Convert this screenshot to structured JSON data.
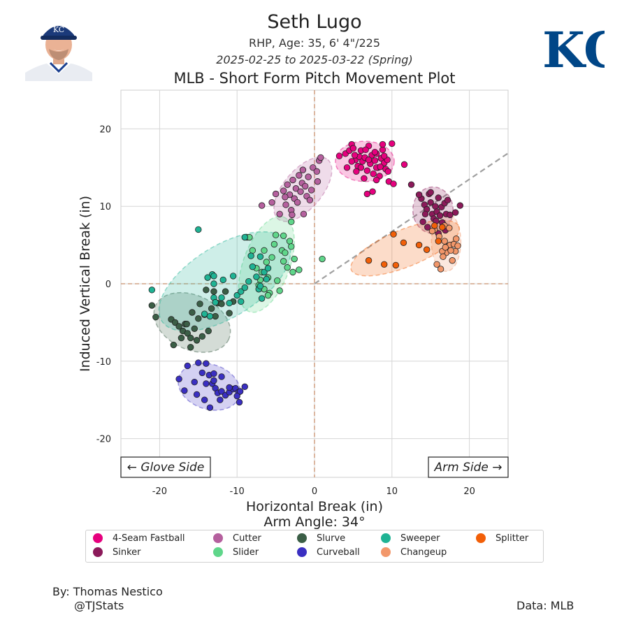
{
  "header": {
    "player_name": "Seth Lugo",
    "player_info": "RHP, Age: 35, 6' 4\"/225",
    "date_range": "2025-02-25 to 2025-03-22 (Spring)",
    "headshot_icon": "player-headshot-icon",
    "team_logo_text": "KC"
  },
  "footer": {
    "credit_name": "By: Thomas Nestico",
    "credit_handle": "@TJStats",
    "data_source": "Data: MLB"
  },
  "colors": {
    "4-Seam Fastball": "#e6007e",
    "Sinker": "#8b1a5a",
    "Cutter": "#b5609e",
    "Slider": "#5fd68a",
    "Slurve": "#3b5e46",
    "Curveball": "#3a2fc2",
    "Sweeper": "#1fb394",
    "Changeup": "#f2976a",
    "Splitter": "#f25f08",
    "team_blue": "#004687"
  },
  "chart_data": {
    "type": "scatter",
    "title": "MLB - Short Form Pitch Movement Plot",
    "xlabel": "Horizontal Break (in)",
    "xlabel2": "Arm Angle: 34°",
    "ylabel": "Induced Vertical Break (in)",
    "xlim": [
      -25,
      25
    ],
    "ylim": [
      -25,
      25
    ],
    "xticks": [
      -20,
      -10,
      0,
      10,
      20
    ],
    "yticks": [
      -20,
      -10,
      0,
      10,
      20
    ],
    "grid": true,
    "arm_angle_deg": 34,
    "annotations": {
      "left": "← Glove Side",
      "right": "Arm Side →"
    },
    "legend_position": "bottom",
    "legend": [
      "4-Seam Fastball",
      "Sinker",
      "Cutter",
      "Slider",
      "Slurve",
      "Curveball",
      "Sweeper",
      "Changeup",
      "Splitter"
    ],
    "series": [
      {
        "name": "4-Seam Fastball",
        "ellipse": {
          "cx": 6.5,
          "cy": 15.8,
          "rx": 3.8,
          "ry": 2.6,
          "angle": 0
        },
        "points": [
          [
            3.2,
            16.5
          ],
          [
            4.0,
            16.8
          ],
          [
            4.5,
            17.2
          ],
          [
            4.8,
            18.0
          ],
          [
            5.0,
            17.5
          ],
          [
            5.3,
            16.0
          ],
          [
            5.6,
            15.2
          ],
          [
            5.8,
            16.4
          ],
          [
            6.0,
            17.2
          ],
          [
            6.2,
            15.8
          ],
          [
            6.5,
            16.3
          ],
          [
            6.8,
            14.6
          ],
          [
            7.0,
            17.8
          ],
          [
            7.2,
            15.5
          ],
          [
            7.4,
            16.6
          ],
          [
            7.6,
            14.2
          ],
          [
            7.8,
            15.9
          ],
          [
            8.0,
            16.8
          ],
          [
            8.2,
            15.0
          ],
          [
            8.4,
            13.9
          ],
          [
            8.6,
            16.2
          ],
          [
            8.8,
            17.3
          ],
          [
            9.0,
            15.6
          ],
          [
            9.2,
            14.8
          ],
          [
            9.4,
            16.0
          ],
          [
            9.6,
            13.2
          ],
          [
            10.0,
            18.1
          ],
          [
            4.2,
            15.0
          ],
          [
            4.8,
            15.8
          ],
          [
            5.4,
            14.5
          ],
          [
            6.4,
            13.6
          ],
          [
            6.8,
            11.6
          ],
          [
            7.5,
            11.9
          ],
          [
            8.0,
            13.4
          ],
          [
            8.8,
            18.0
          ],
          [
            10.2,
            12.9
          ],
          [
            11.6,
            15.4
          ],
          [
            6.0,
            15.0
          ],
          [
            7.0,
            16.0
          ],
          [
            8.0,
            15.0
          ],
          [
            9.0,
            16.5
          ],
          [
            5.2,
            16.6
          ],
          [
            6.6,
            17.3
          ],
          [
            7.8,
            17.0
          ],
          [
            8.5,
            15.1
          ],
          [
            9.5,
            14.5
          ]
        ]
      },
      {
        "name": "Sinker",
        "ellipse": {
          "cx": 15.3,
          "cy": 9.5,
          "rx": 2.6,
          "ry": 3.0,
          "angle": 0
        },
        "points": [
          [
            13.8,
            11.0
          ],
          [
            14.2,
            10.2
          ],
          [
            14.5,
            9.6
          ],
          [
            14.8,
            11.6
          ],
          [
            15.0,
            10.5
          ],
          [
            15.2,
            9.0
          ],
          [
            15.4,
            8.4
          ],
          [
            15.6,
            10.0
          ],
          [
            15.8,
            9.3
          ],
          [
            16.0,
            11.1
          ],
          [
            16.2,
            8.8
          ],
          [
            16.4,
            9.9
          ],
          [
            16.6,
            7.7
          ],
          [
            16.8,
            10.4
          ],
          [
            17.0,
            9.0
          ],
          [
            14.0,
            8.0
          ],
          [
            14.6,
            7.3
          ],
          [
            15.5,
            7.0
          ],
          [
            16.0,
            6.5
          ],
          [
            16.5,
            7.9
          ],
          [
            17.5,
            8.9
          ],
          [
            18.2,
            9.2
          ],
          [
            18.8,
            10.1
          ],
          [
            12.5,
            12.8
          ],
          [
            13.5,
            11.5
          ],
          [
            15.0,
            11.8
          ],
          [
            14.3,
            9.0
          ],
          [
            15.7,
            8.1
          ],
          [
            17.2,
            10.8
          ],
          [
            16.9,
            6.9
          ]
        ]
      },
      {
        "name": "Cutter",
        "ellipse": {
          "cx": -1.5,
          "cy": 12.2,
          "rx": 5.0,
          "ry": 2.5,
          "angle": 50
        },
        "points": [
          [
            -5.5,
            10.5
          ],
          [
            -5.0,
            11.6
          ],
          [
            -4.5,
            9.0
          ],
          [
            -4.0,
            12.0
          ],
          [
            -3.7,
            10.2
          ],
          [
            -3.5,
            12.8
          ],
          [
            -3.2,
            11.5
          ],
          [
            -3.0,
            9.5
          ],
          [
            -2.8,
            13.4
          ],
          [
            -2.6,
            11.0
          ],
          [
            -2.4,
            12.3
          ],
          [
            -2.2,
            10.5
          ],
          [
            -2.0,
            14.0
          ],
          [
            -1.8,
            11.9
          ],
          [
            -1.6,
            13.0
          ],
          [
            -1.4,
            9.0
          ],
          [
            -1.2,
            12.6
          ],
          [
            -1.0,
            11.3
          ],
          [
            -0.8,
            13.8
          ],
          [
            -0.6,
            10.8
          ],
          [
            -0.4,
            12.1
          ],
          [
            -0.2,
            15.0
          ],
          [
            0.3,
            14.5
          ],
          [
            0.6,
            15.9
          ],
          [
            0.8,
            16.3
          ],
          [
            -6.8,
            10.1
          ],
          [
            -3.8,
            11.2
          ],
          [
            -2.9,
            8.9
          ],
          [
            -1.5,
            14.7
          ],
          [
            0.4,
            13.2
          ]
        ]
      },
      {
        "name": "Slider",
        "ellipse": {
          "cx": -6.2,
          "cy": 2.5,
          "rx": 6.5,
          "ry": 3.0,
          "angle": 70
        },
        "points": [
          [
            -8.7,
            6.0
          ],
          [
            -8.4,
            6.0
          ],
          [
            -8.0,
            4.3
          ],
          [
            -7.5,
            2.0
          ],
          [
            -7.0,
            0.5
          ],
          [
            -6.8,
            1.5
          ],
          [
            -6.5,
            -0.7
          ],
          [
            -6.2,
            2.8
          ],
          [
            -6.0,
            0.8
          ],
          [
            -5.8,
            -1.2
          ],
          [
            -5.5,
            3.4
          ],
          [
            -5.2,
            5.1
          ],
          [
            -5.0,
            6.3
          ],
          [
            -4.8,
            0.4
          ],
          [
            -4.5,
            -0.9
          ],
          [
            -4.2,
            4.3
          ],
          [
            -4.0,
            2.9
          ],
          [
            -3.8,
            4.0
          ],
          [
            -3.5,
            2.1
          ],
          [
            -3.2,
            5.5
          ],
          [
            -3.0,
            4.8
          ],
          [
            -2.8,
            1.5
          ],
          [
            -2.6,
            3.2
          ],
          [
            -2.0,
            1.8
          ],
          [
            -3.0,
            8.0
          ],
          [
            -4.0,
            6.2
          ],
          [
            -6.5,
            4.3
          ],
          [
            -6.0,
            -1.5
          ],
          [
            1.0,
            3.2
          ],
          [
            -7.2,
            -0.2
          ]
        ]
      },
      {
        "name": "Slurve",
        "ellipse": {
          "cx": -15.8,
          "cy": -5.0,
          "rx": 5.2,
          "ry": 3.5,
          "angle": -25
        },
        "points": [
          [
            -21.0,
            -2.8
          ],
          [
            -20.5,
            -4.3
          ],
          [
            -18.5,
            -4.6
          ],
          [
            -18.0,
            -5.0
          ],
          [
            -18.2,
            -7.9
          ],
          [
            -17.5,
            -5.5
          ],
          [
            -17.0,
            -6.1
          ],
          [
            -16.7,
            -5.2
          ],
          [
            -16.4,
            -6.4
          ],
          [
            -16.0,
            -7.0
          ],
          [
            -15.8,
            -3.7
          ],
          [
            -15.5,
            -5.8
          ],
          [
            -15.2,
            -7.3
          ],
          [
            -15.0,
            -4.5
          ],
          [
            -14.5,
            -6.8
          ],
          [
            -14.2,
            -4.0
          ],
          [
            -14.0,
            -0.8
          ],
          [
            -13.7,
            -6.1
          ],
          [
            -13.3,
            -3.2
          ],
          [
            -13.0,
            -1.0
          ],
          [
            -12.5,
            -2.5
          ],
          [
            -12.0,
            -2.6
          ],
          [
            -11.5,
            -1.0
          ],
          [
            -11.0,
            -3.8
          ],
          [
            -10.5,
            -2.3
          ],
          [
            -16.5,
            -5.2
          ],
          [
            -17.2,
            -7.0
          ],
          [
            -14.8,
            -2.6
          ],
          [
            -12.8,
            -4.2
          ],
          [
            -16.0,
            -8.2
          ]
        ]
      },
      {
        "name": "Curveball",
        "ellipse": {
          "cx": -13.6,
          "cy": -13.3,
          "rx": 4.1,
          "ry": 2.9,
          "angle": -18
        },
        "points": [
          [
            -16.4,
            -10.6
          ],
          [
            -15.5,
            -12.7
          ],
          [
            -15.0,
            -10.2
          ],
          [
            -14.5,
            -11.5
          ],
          [
            -14.0,
            -12.9
          ],
          [
            -14.0,
            -10.3
          ],
          [
            -13.6,
            -11.8
          ],
          [
            -13.2,
            -12.9
          ],
          [
            -13.0,
            -11.6
          ],
          [
            -12.8,
            -13.5
          ],
          [
            -12.5,
            -14.1
          ],
          [
            -12.0,
            -13.9
          ],
          [
            -11.5,
            -14.4
          ],
          [
            -11.0,
            -14.0
          ],
          [
            -10.5,
            -13.6
          ],
          [
            -10.2,
            -13.5
          ],
          [
            -9.8,
            -14.0
          ],
          [
            -9.6,
            -13.9
          ],
          [
            -10.0,
            -14.5
          ],
          [
            -12.2,
            -15.0
          ],
          [
            -13.5,
            -16.0
          ],
          [
            -14.2,
            -15.0
          ],
          [
            -15.2,
            -14.3
          ],
          [
            -17.5,
            -12.3
          ],
          [
            -16.8,
            -13.8
          ],
          [
            -13.0,
            -12.5
          ],
          [
            -12.0,
            -12.0
          ],
          [
            -11.0,
            -13.4
          ],
          [
            -9.7,
            -15.3
          ],
          [
            -9.0,
            -13.3
          ]
        ]
      },
      {
        "name": "Sweeper",
        "ellipse": {
          "cx": -11.6,
          "cy": 0.3,
          "rx": 9.6,
          "ry": 4.6,
          "angle": 32
        },
        "points": [
          [
            -21.0,
            -0.8
          ],
          [
            -15.0,
            7.0
          ],
          [
            -13.2,
            1.2
          ],
          [
            -13.0,
            1.0
          ],
          [
            -13.0,
            0.0
          ],
          [
            -13.0,
            -1.8
          ],
          [
            -12.8,
            -2.4
          ],
          [
            -13.5,
            -4.2
          ],
          [
            -14.2,
            -3.9
          ],
          [
            -11.0,
            -2.5
          ],
          [
            -10.0,
            -1.5
          ],
          [
            -9.5,
            -2.3
          ],
          [
            -9.5,
            -1.0
          ],
          [
            -9.0,
            -0.5
          ],
          [
            -8.5,
            0.3
          ],
          [
            -9.0,
            6.0
          ],
          [
            -8.2,
            3.6
          ],
          [
            -8.0,
            2.2
          ],
          [
            -7.5,
            0.9
          ],
          [
            -7.2,
            -0.7
          ],
          [
            -6.8,
            -1.9
          ],
          [
            -7.0,
            -0.3
          ],
          [
            -7.0,
            3.5
          ],
          [
            -6.5,
            1.5
          ],
          [
            -6.2,
            0.6
          ],
          [
            -6.0,
            2.0
          ],
          [
            -10.5,
            1.0
          ],
          [
            -11.8,
            0.5
          ],
          [
            -13.8,
            0.8
          ],
          [
            -12.0,
            -1.8
          ]
        ]
      },
      {
        "name": "Changeup",
        "ellipse": {
          "cx": 17.0,
          "cy": 5.4,
          "rx": 1.9,
          "ry": 3.8,
          "angle": 0
        },
        "points": [
          [
            16.8,
            5.5
          ],
          [
            17.0,
            4.0
          ],
          [
            17.2,
            4.8
          ],
          [
            17.5,
            5.0
          ],
          [
            17.8,
            3.0
          ],
          [
            18.0,
            5.1
          ],
          [
            18.2,
            4.2
          ],
          [
            18.5,
            4.9
          ],
          [
            16.5,
            4.2
          ],
          [
            16.8,
            7.5
          ],
          [
            15.5,
            7.0
          ],
          [
            15.2,
            6.8
          ],
          [
            15.8,
            2.5
          ],
          [
            16.3,
            1.9
          ],
          [
            16.9,
            4.7
          ],
          [
            17.4,
            7.2
          ],
          [
            16.1,
            6.1
          ],
          [
            17.6,
            4.3
          ],
          [
            18.3,
            5.8
          ],
          [
            16.6,
            3.5
          ]
        ]
      },
      {
        "name": "Splitter",
        "ellipse": {
          "cx": 11.7,
          "cy": 4.6,
          "rx": 7.5,
          "ry": 2.4,
          "angle": 22
        },
        "points": [
          [
            7.0,
            3.0
          ],
          [
            9.0,
            2.5
          ],
          [
            10.5,
            2.4
          ],
          [
            11.5,
            5.3
          ],
          [
            13.5,
            5.0
          ],
          [
            14.5,
            4.4
          ],
          [
            16.0,
            5.5
          ],
          [
            15.5,
            7.5
          ],
          [
            16.5,
            7.3
          ],
          [
            10.2,
            6.4
          ]
        ]
      }
    ]
  }
}
